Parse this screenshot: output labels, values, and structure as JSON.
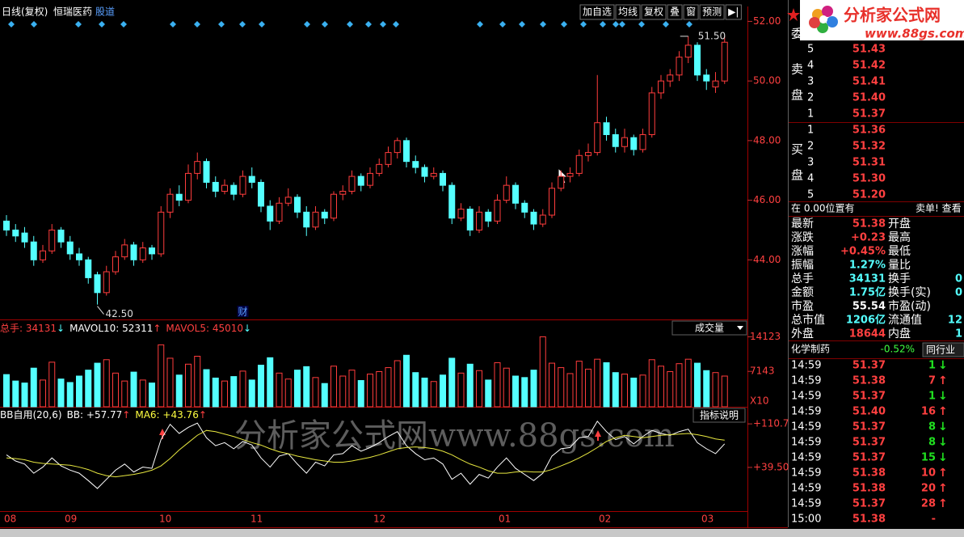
{
  "toolbar": {
    "period": "日线(复权)",
    "stock": "恒瑞医药",
    "link": "股道",
    "buttons": [
      "加自选",
      "均线",
      "复权",
      "叠",
      "窗",
      "预测",
      "▶|"
    ]
  },
  "logo": {
    "name": "分析家公式网",
    "url": "www.88gs.com"
  },
  "watermark": "分析家公式网www.88gs.com",
  "price_chart": {
    "type": "candlestick",
    "up_color": "#ff3c3c",
    "down_color": "#54ffff",
    "ylim": [
      42,
      52.5
    ],
    "yticks": [
      {
        "value": 52,
        "label": "52.00"
      },
      {
        "value": 50,
        "label": "50.00"
      },
      {
        "value": 48,
        "label": "48.00"
      },
      {
        "value": 46,
        "label": "46.00"
      },
      {
        "value": 44,
        "label": "44.00"
      }
    ],
    "high_label": "51.50",
    "low_label": "42.50",
    "event_label": "财",
    "candles": [
      [
        45.3,
        45.5,
        44.8,
        45.0
      ],
      [
        45.0,
        45.2,
        44.6,
        44.8
      ],
      [
        44.9,
        45.1,
        44.4,
        44.6
      ],
      [
        44.6,
        44.8,
        43.8,
        44.0
      ],
      [
        44.0,
        44.5,
        43.9,
        44.3
      ],
      [
        44.3,
        45.2,
        44.2,
        45.0
      ],
      [
        45.0,
        45.1,
        44.4,
        44.6
      ],
      [
        44.6,
        44.8,
        44.0,
        44.2
      ],
      [
        44.2,
        44.4,
        43.8,
        44.0
      ],
      [
        44.0,
        44.1,
        43.2,
        43.4
      ],
      [
        43.5,
        43.6,
        42.5,
        42.9
      ],
      [
        42.9,
        43.8,
        42.8,
        43.6
      ],
      [
        43.6,
        44.3,
        43.5,
        44.1
      ],
      [
        44.1,
        44.7,
        44.0,
        44.5
      ],
      [
        44.5,
        44.6,
        43.8,
        44.0
      ],
      [
        44.0,
        44.6,
        43.9,
        44.4
      ],
      [
        44.4,
        44.5,
        44.0,
        44.2
      ],
      [
        44.2,
        45.8,
        44.1,
        45.6
      ],
      [
        45.6,
        46.4,
        45.4,
        46.2
      ],
      [
        46.2,
        46.5,
        45.8,
        46.0
      ],
      [
        46.0,
        47.2,
        45.9,
        46.9
      ],
      [
        46.9,
        47.6,
        46.7,
        47.3
      ],
      [
        47.3,
        47.4,
        46.4,
        46.6
      ],
      [
        46.6,
        46.8,
        46.1,
        46.3
      ],
      [
        46.3,
        46.7,
        46.2,
        46.5
      ],
      [
        46.5,
        46.6,
        46.0,
        46.2
      ],
      [
        46.2,
        47.0,
        46.1,
        46.8
      ],
      [
        46.8,
        47.1,
        46.4,
        46.6
      ],
      [
        46.6,
        46.7,
        45.6,
        45.8
      ],
      [
        45.8,
        46.0,
        45.0,
        45.3
      ],
      [
        45.3,
        46.1,
        45.2,
        45.9
      ],
      [
        45.9,
        46.4,
        45.8,
        46.1
      ],
      [
        46.1,
        46.2,
        45.4,
        45.6
      ],
      [
        45.6,
        45.8,
        44.8,
        45.1
      ],
      [
        45.1,
        45.8,
        45.0,
        45.6
      ],
      [
        45.6,
        45.7,
        45.2,
        45.4
      ],
      [
        45.4,
        46.3,
        45.3,
        46.2
      ],
      [
        46.2,
        46.5,
        46.0,
        46.3
      ],
      [
        46.3,
        47.0,
        46.2,
        46.8
      ],
      [
        46.8,
        46.9,
        46.3,
        46.5
      ],
      [
        46.5,
        47.1,
        46.4,
        46.9
      ],
      [
        46.9,
        47.4,
        46.8,
        47.2
      ],
      [
        47.2,
        47.8,
        47.1,
        47.6
      ],
      [
        47.6,
        48.1,
        47.4,
        48.0
      ],
      [
        48.0,
        48.1,
        47.1,
        47.3
      ],
      [
        47.3,
        47.5,
        46.9,
        47.1
      ],
      [
        47.1,
        47.2,
        46.6,
        46.8
      ],
      [
        46.8,
        47.1,
        46.7,
        46.9
      ],
      [
        46.9,
        47.0,
        46.3,
        46.5
      ],
      [
        46.5,
        46.6,
        45.2,
        45.4
      ],
      [
        45.4,
        45.9,
        45.3,
        45.7
      ],
      [
        45.7,
        45.8,
        44.8,
        45.0
      ],
      [
        45.0,
        45.8,
        44.9,
        45.6
      ],
      [
        45.6,
        45.7,
        45.1,
        45.3
      ],
      [
        45.3,
        46.2,
        45.2,
        46.0
      ],
      [
        46.0,
        46.8,
        45.9,
        46.5
      ],
      [
        46.5,
        46.6,
        45.7,
        45.9
      ],
      [
        45.9,
        46.0,
        45.4,
        45.6
      ],
      [
        45.6,
        45.7,
        45.0,
        45.2
      ],
      [
        45.2,
        45.7,
        45.1,
        45.5
      ],
      [
        45.5,
        46.6,
        45.4,
        46.4
      ],
      [
        46.4,
        47.0,
        46.3,
        46.8
      ],
      [
        46.8,
        47.1,
        46.6,
        46.9
      ],
      [
        46.9,
        47.7,
        46.8,
        47.5
      ],
      [
        47.5,
        47.9,
        47.3,
        47.6
      ],
      [
        47.6,
        50.2,
        47.5,
        48.6
      ],
      [
        48.6,
        48.8,
        48.0,
        48.2
      ],
      [
        48.2,
        48.4,
        47.6,
        47.8
      ],
      [
        47.8,
        48.4,
        47.6,
        48.1
      ],
      [
        48.1,
        48.2,
        47.5,
        47.7
      ],
      [
        47.7,
        48.4,
        47.6,
        48.2
      ],
      [
        48.2,
        49.8,
        48.1,
        49.6
      ],
      [
        49.6,
        50.2,
        49.4,
        50.0
      ],
      [
        50.0,
        50.4,
        49.8,
        50.2
      ],
      [
        50.2,
        51.0,
        50.0,
        50.8
      ],
      [
        50.8,
        51.5,
        50.6,
        51.2
      ],
      [
        51.2,
        51.3,
        50.0,
        50.2
      ],
      [
        50.2,
        50.4,
        49.7,
        50.0
      ],
      [
        49.8,
        50.3,
        49.6,
        50.0
      ],
      [
        50.0,
        51.5,
        49.9,
        51.3
      ]
    ]
  },
  "volume_chart": {
    "type": "bar",
    "ylim": [
      0,
      15500
    ],
    "yticks": [
      14123,
      7143
    ],
    "multiplier": "X10",
    "selector": "成交量",
    "header": [
      {
        "label": "总手: 34131",
        "arrow": "↓",
        "color": "#ff4040",
        "arrow_color": "#54ffff"
      },
      {
        "label": "MAVOL10: 52311",
        "arrow": "↑",
        "color": "#ffffff",
        "arrow_color": "#ff4040"
      },
      {
        "label": "MAVOL5: 45010",
        "arrow": "↓",
        "color": "#ff4040",
        "arrow_color": "#54ffff"
      }
    ],
    "values": [
      6500,
      5200,
      4800,
      7800,
      5400,
      9000,
      5600,
      4900,
      6200,
      7400,
      8800,
      9500,
      6800,
      5200,
      7000,
      5400,
      4800,
      12500,
      9800,
      6400,
      8600,
      10200,
      7500,
      5800,
      5200,
      6100,
      7200,
      5400,
      8400,
      9900,
      6800,
      5600,
      7400,
      8100,
      5900,
      4700,
      8200,
      6200,
      7400,
      5300,
      6600,
      7100,
      7900,
      9300,
      10400,
      6900,
      5800,
      5100,
      6400,
      9800,
      6800,
      8600,
      7300,
      5400,
      8900,
      7800,
      6200,
      5900,
      7400,
      14123,
      8800,
      7900,
      6700,
      9200,
      7600,
      9600,
      8900,
      6900,
      6600,
      5800,
      6400,
      9500,
      8200,
      7100,
      8700,
      9600,
      8800,
      7300,
      6900,
      6200
    ]
  },
  "indicator": {
    "type": "line",
    "ylim": [
      -32,
      132
    ],
    "yticks": [
      {
        "value": 110.7,
        "label": "+110.7"
      },
      {
        "value": 39.5,
        "label": "+39.50"
      }
    ],
    "help": "指标说明",
    "header": [
      {
        "label": "BB自用(20,6)",
        "color": "#ffffff"
      },
      {
        "label": "BB: +57.77",
        "arrow": "↑",
        "color": "#ffffff",
        "arrow_color": "#ff4040"
      },
      {
        "label": "MA6: +43.76",
        "arrow": "↑",
        "color": "#ffff40",
        "arrow_color": "#ff4040"
      }
    ],
    "series": [
      {
        "name": "BB",
        "color": "#ffffff",
        "values": [
          60,
          50,
          45,
          30,
          40,
          55,
          42,
          35,
          30,
          18,
          5,
          20,
          35,
          45,
          32,
          40,
          38,
          85,
          110,
          95,
          105,
          112,
          88,
          75,
          80,
          70,
          82,
          76,
          55,
          40,
          58,
          62,
          45,
          30,
          48,
          42,
          60,
          62,
          75,
          66,
          72,
          80,
          90,
          98,
          75,
          62,
          52,
          55,
          45,
          20,
          30,
          12,
          28,
          22,
          40,
          55,
          38,
          28,
          18,
          30,
          58,
          70,
          72,
          88,
          90,
          115,
          98,
          85,
          90,
          78,
          90,
          100,
          95,
          92,
          98,
          102,
          80,
          70,
          62,
          78
        ]
      },
      {
        "name": "MA6",
        "color": "#e8e840",
        "values": [
          55,
          54,
          52,
          48,
          46,
          45,
          44,
          43,
          40,
          36,
          30,
          26,
          24,
          26,
          28,
          31,
          35,
          42,
          54,
          68,
          80,
          92,
          100,
          98,
          94,
          90,
          85,
          80,
          76,
          70,
          65,
          62,
          58,
          55,
          52,
          50,
          48,
          48,
          50,
          53,
          56,
          60,
          65,
          70,
          72,
          73,
          72,
          70,
          66,
          60,
          52,
          45,
          40,
          34,
          30,
          30,
          32,
          33,
          32,
          32,
          36,
          42,
          48,
          55,
          63,
          72,
          82,
          88,
          92,
          90,
          88,
          90,
          92,
          93,
          94,
          95,
          93,
          90,
          86,
          84
        ]
      }
    ]
  },
  "x_axis": {
    "labels": [
      "08",
      "09",
      "10",
      "11",
      "12",
      "01",
      "02",
      "03"
    ]
  },
  "order_book": {
    "title": "委",
    "sell_label": [
      "卖",
      "盘"
    ],
    "buy_label": [
      "买",
      "盘"
    ],
    "sell": [
      {
        "level": "5",
        "price": "51.43"
      },
      {
        "level": "4",
        "price": "51.42"
      },
      {
        "level": "3",
        "price": "51.41"
      },
      {
        "level": "2",
        "price": "51.40"
      },
      {
        "level": "1",
        "price": "51.37"
      }
    ],
    "buy": [
      {
        "level": "1",
        "price": "51.36"
      },
      {
        "level": "2",
        "price": "51.32"
      },
      {
        "level": "3",
        "price": "51.31"
      },
      {
        "level": "4",
        "price": "51.30"
      },
      {
        "level": "5",
        "price": "51.20"
      }
    ],
    "note": "在 0.00位置有",
    "note_right": "卖单! 查看"
  },
  "quote": [
    {
      "label": "最新",
      "value": "51.38",
      "color": "#ff4040",
      "label2": "开盘"
    },
    {
      "label": "涨跌",
      "value": "+0.23",
      "color": "#ff4040",
      "label2": "最高"
    },
    {
      "label": "涨幅",
      "value": "+0.45%",
      "color": "#ff4040",
      "label2": "最低"
    },
    {
      "label": "振幅",
      "value": "1.27%",
      "color": "#54ffff",
      "label2": "量比"
    },
    {
      "label": "总手",
      "value": "34131",
      "color": "#54ffff",
      "label2": "换手",
      "value2": "0"
    },
    {
      "label": "金额",
      "value": "1.75亿",
      "color": "#54ffff",
      "label2": "换手(实)",
      "value2": "0"
    },
    {
      "label": "市盈",
      "value": "55.54",
      "color": "#ffffff",
      "label2": "市盈(动)"
    },
    {
      "label": "总市值",
      "value": "1206亿",
      "color": "#54ffff",
      "label2": "流通值",
      "value2": "12"
    },
    {
      "label": "外盘",
      "value": "18644",
      "color": "#ff4040",
      "label2": "内盘",
      "value2": "1"
    }
  ],
  "industry": {
    "name": "化学制药",
    "change": "-0.52%",
    "link": "同行业"
  },
  "trades": [
    {
      "time": "14:59",
      "price": "51.37",
      "volume": "1",
      "arrow": "↓"
    },
    {
      "time": "14:59",
      "price": "51.38",
      "volume": "7",
      "arrow": "↑"
    },
    {
      "time": "14:59",
      "price": "51.37",
      "volume": "1",
      "arrow": "↓"
    },
    {
      "time": "14:59",
      "price": "51.40",
      "volume": "16",
      "arrow": "↑"
    },
    {
      "time": "14:59",
      "price": "51.37",
      "volume": "8",
      "arrow": "↓"
    },
    {
      "time": "14:59",
      "price": "51.37",
      "volume": "8",
      "arrow": "↓"
    },
    {
      "time": "14:59",
      "price": "51.37",
      "volume": "15",
      "arrow": "↓"
    },
    {
      "time": "14:59",
      "price": "51.38",
      "volume": "10",
      "arrow": "↑"
    },
    {
      "time": "14:59",
      "price": "51.38",
      "volume": "20",
      "arrow": "↑"
    },
    {
      "time": "14:59",
      "price": "51.37",
      "volume": "28",
      "arrow": "↑"
    },
    {
      "time": "15:00",
      "price": "51.38",
      "volume": "-"
    }
  ]
}
